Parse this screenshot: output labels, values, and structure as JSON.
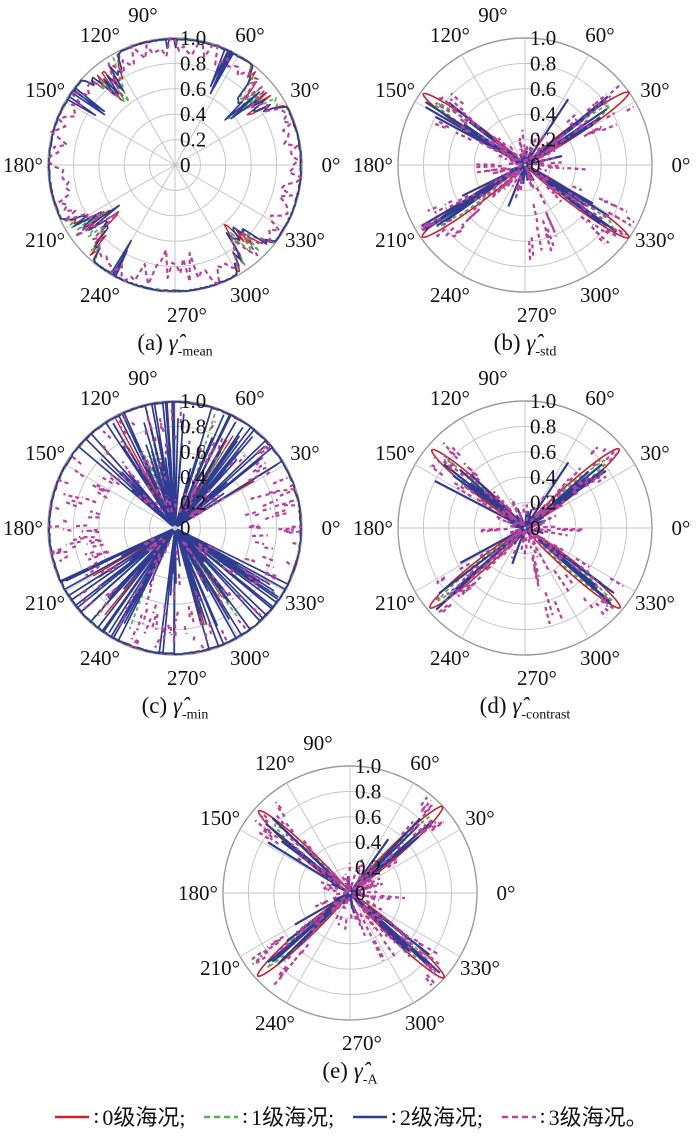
{
  "page": {
    "background": "#ffffff"
  },
  "series": [
    {
      "name": "0级海况",
      "color": "#c8232c",
      "line": "solid"
    },
    {
      "name": "1级海况",
      "color": "#56b14a",
      "line": "dashed"
    },
    {
      "name": "2级海况",
      "color": "#2e3c92",
      "line": "solid"
    },
    {
      "name": "3级海况",
      "color": "#b8439d",
      "line": "dashed"
    }
  ],
  "polar_axes": {
    "angle_ticks": [
      0,
      30,
      60,
      90,
      120,
      150,
      180,
      210,
      240,
      270,
      300,
      330
    ],
    "angle_labels": [
      "0°",
      "30°",
      "60°",
      "90°",
      "120°",
      "150°",
      "180°",
      "210°",
      "240°",
      "270°",
      "300°",
      "330°"
    ],
    "radial_ticks": [
      0,
      0.2,
      0.4,
      0.6,
      0.8,
      1.0
    ],
    "radial_labels": [
      "0",
      "0.2",
      "0.4",
      "0.6",
      "0.8",
      "1.0"
    ],
    "rlim": [
      0,
      1
    ],
    "grid": true,
    "grid_color": "#c6c6c6",
    "outer_ring_color": "#9b9b9b",
    "label_color": "#111111"
  },
  "chart_data": [
    {
      "id": "a",
      "type": "polar-line",
      "caption": {
        "prefix": "(a)",
        "symbol": "γ̂",
        "subscript": "-mean",
        "text": "(a) γ̂-mean"
      },
      "pattern": "ring_notches",
      "seed": 7,
      "description": "All four sea-state curves stay near r=1 around the full circle with jagged notches cut toward the centre near the four diagonal look directions; state-3 (magenta, dashed) is noisy just inside the rim everywhere.",
      "notches": [
        {
          "center_deg": 40,
          "half_width_deg": 13,
          "depth": 0.55
        },
        {
          "center_deg": 127,
          "half_width_deg": 11,
          "depth": 0.5
        },
        {
          "center_deg": 218,
          "half_width_deg": 13,
          "depth": 0.55
        },
        {
          "center_deg": 311,
          "half_width_deg": 12,
          "depth": 0.5
        }
      ],
      "blue_spikes": [
        {
          "center_deg": 63,
          "half_width_deg": 5,
          "depth": 0.42,
          "count": 3
        },
        {
          "center_deg": 147,
          "half_width_deg": 4,
          "depth": 0.38,
          "count": 3
        },
        {
          "center_deg": 243,
          "half_width_deg": 4,
          "depth": 0.35,
          "count": 2
        },
        {
          "center_deg": 92,
          "half_width_deg": 3,
          "depth": 0.12,
          "count": 2
        }
      ],
      "noise_ring": {
        "base": 0.93,
        "amp": 0.08,
        "deep_sectors": [
          {
            "center_deg": 268,
            "half_width_deg": 22,
            "depth": 0.32
          },
          {
            "center_deg": 40,
            "half_width_deg": 13,
            "depth": 0.3
          },
          {
            "center_deg": 127,
            "half_width_deg": 12,
            "depth": 0.28
          },
          {
            "center_deg": 218,
            "half_width_deg": 14,
            "depth": 0.33
          },
          {
            "center_deg": 311,
            "half_width_deg": 13,
            "depth": 0.3
          },
          {
            "center_deg": 185,
            "half_width_deg": 8,
            "depth": 0.12
          }
        ]
      }
    },
    {
      "id": "b",
      "type": "polar-line",
      "caption": {
        "prefix": "(b)",
        "symbol": "γ̂",
        "subscript": "-std",
        "text": "(b) γ̂-std"
      },
      "pattern": "x_lobes",
      "seed": 21,
      "description": "X-shaped four-lobe pattern; narrow petals reaching almost r=1 along ~35°/145°/215°/325°, dense noise cluster at the centre, stray magenta dashes toward 270°-300°.",
      "lobes": [
        {
          "center_deg": 35,
          "peak": 0.97
        },
        {
          "center_deg": 145,
          "peak": 0.95
        },
        {
          "center_deg": 215,
          "peak": 0.96
        },
        {
          "center_deg": 325,
          "peak": 0.97
        }
      ],
      "sigma_red_deg": 4.2,
      "sigma_green_deg": 3.4,
      "blue": {
        "per_lobe": 6,
        "spread_deg": 11
      },
      "blue_strays": [
        {
          "angle_deg": 57,
          "len": 0.62
        },
        {
          "angle_deg": 152,
          "len": 0.8
        },
        {
          "angle_deg": 206,
          "len": 0.55
        },
        {
          "angle_deg": 248,
          "len": 0.35
        },
        {
          "angle_deg": 14,
          "len": 0.3
        }
      ],
      "magenta": {
        "per_lobe": 34,
        "spread_deg": 11,
        "stray_sectors": [
          {
            "a0": 270,
            "a1": 303,
            "count": 10,
            "rmax": 0.75
          },
          {
            "a0": 178,
            "a1": 192,
            "count": 4,
            "rmax": 0.4
          },
          {
            "a0": 350,
            "a1": 360,
            "count": 3,
            "rmax": 0.5
          }
        ]
      }
    },
    {
      "id": "c",
      "type": "polar-line",
      "caption": {
        "prefix": "(c)",
        "symbol": "γ̂",
        "subscript": "-min",
        "text": "(c) γ̂-min"
      },
      "pattern": "ring_spike_fans",
      "seed": 13,
      "description": "Outer ring near r=1 at all angles plus wide fans of radial spikes running from the centre out to the rim around the four diagonal sectors; magenta dashes scattered over the whole disc.",
      "fans": [
        {
          "a0": 30,
          "a1": 76
        },
        {
          "a0": 97,
          "a1": 141
        },
        {
          "a0": 204,
          "a1": 251
        },
        {
          "a0": 284,
          "a1": 333
        },
        {
          "a0": 85,
          "a1": 95
        },
        {
          "a0": 262,
          "a1": 277
        }
      ],
      "blue_spikes_per_deg": 0.85,
      "magenta_dash_count": 300
    },
    {
      "id": "d",
      "type": "polar-line",
      "caption": {
        "prefix": "(d)",
        "symbol": "γ̂",
        "subscript": "-contrast",
        "text": "(d) γ̂-contrast"
      },
      "pattern": "x_lobes",
      "seed": 33,
      "description": "X-shaped four-lobe pattern with red petal outlines reaching ~0.95 along ~40°/140°/220°/320°; centre noise blob and stray magenta dashes toward 280°-305°.",
      "lobes": [
        {
          "center_deg": 40,
          "peak": 0.94
        },
        {
          "center_deg": 140,
          "peak": 0.93
        },
        {
          "center_deg": 220,
          "peak": 0.95
        },
        {
          "center_deg": 320,
          "peak": 0.95
        }
      ],
      "sigma_red_deg": 4.4,
      "sigma_green_deg": 3.5,
      "blue": {
        "per_lobe": 6,
        "spread_deg": 10
      },
      "blue_strays": [
        {
          "angle_deg": 57,
          "len": 0.62
        },
        {
          "angle_deg": 152,
          "len": 0.8
        },
        {
          "angle_deg": 208,
          "len": 0.58
        },
        {
          "angle_deg": 250,
          "len": 0.3
        }
      ],
      "magenta": {
        "per_lobe": 30,
        "spread_deg": 10,
        "stray_sectors": [
          {
            "a0": 280,
            "a1": 305,
            "count": 9,
            "rmax": 0.78
          },
          {
            "a0": 350,
            "a1": 360,
            "count": 3,
            "rmax": 0.55
          },
          {
            "a0": 175,
            "a1": 190,
            "count": 3,
            "rmax": 0.35
          }
        ]
      }
    },
    {
      "id": "e",
      "type": "polar-line",
      "caption": {
        "prefix": "(e)",
        "symbol": "γ̂",
        "subscript": "-A",
        "text": "(e) γ̂-A"
      },
      "pattern": "x_lobes",
      "seed": 45,
      "description": "X-shaped four-lobe pattern with petals reaching ~0.97 along ~43°/138°/222°/318°; centre noise blob and a few stray magenta dashes toward 290°-310°.",
      "lobes": [
        {
          "center_deg": 43,
          "peak": 0.97
        },
        {
          "center_deg": 138,
          "peak": 0.94
        },
        {
          "center_deg": 222,
          "peak": 0.95
        },
        {
          "center_deg": 318,
          "peak": 0.97
        }
      ],
      "sigma_red_deg": 4.3,
      "sigma_green_deg": 3.4,
      "blue": {
        "per_lobe": 6,
        "spread_deg": 9
      },
      "blue_strays": [
        {
          "angle_deg": 55,
          "len": 0.52
        },
        {
          "angle_deg": 148,
          "len": 0.76
        },
        {
          "angle_deg": 210,
          "len": 0.5
        }
      ],
      "magenta": {
        "per_lobe": 30,
        "spread_deg": 9,
        "stray_sectors": [
          {
            "a0": 287,
            "a1": 310,
            "count": 8,
            "rmax": 0.62
          },
          {
            "a0": 350,
            "a1": 359,
            "count": 2,
            "rmax": 0.45
          }
        ]
      }
    }
  ],
  "legend": {
    "separator": ":",
    "items": [
      {
        "label": "0级海况;",
        "color": "#c8232c",
        "dash": "solid"
      },
      {
        "label": "1级海况;",
        "color": "#56b14a",
        "dash": "dashed"
      },
      {
        "label": "2级海况;",
        "color": "#2e3c92",
        "dash": "solid"
      },
      {
        "label": "3级海况。",
        "color": "#b8439d",
        "dash": "dashed"
      }
    ]
  }
}
